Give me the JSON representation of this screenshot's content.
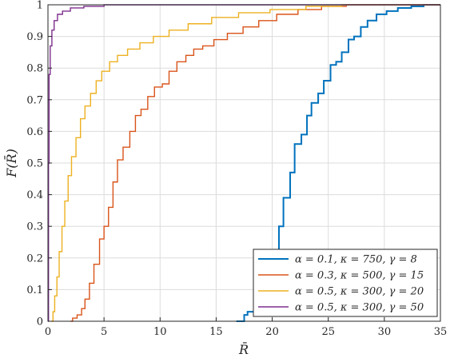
{
  "chart_data": {
    "type": "line",
    "title": "",
    "xlabel": "R̄",
    "ylabel": "F(R̄)",
    "xlim": [
      0,
      35
    ],
    "ylim": [
      0,
      1
    ],
    "xticks": [
      0,
      5,
      10,
      15,
      20,
      25,
      30,
      35
    ],
    "yticks": [
      0,
      0.1,
      0.2,
      0.3,
      0.4,
      0.5,
      0.6,
      0.7,
      0.8,
      0.9,
      1
    ],
    "xtick_labels": [
      "0",
      "5",
      "10",
      "15",
      "20",
      "25",
      "30",
      "35"
    ],
    "ytick_labels": [
      "0",
      "0.1",
      "0.2",
      "0.3",
      "0.4",
      "0.5",
      "0.6",
      "0.7",
      "0.8",
      "0.9",
      "1"
    ],
    "grid": true,
    "legend_position": "bottom-right",
    "series": [
      {
        "name": "α = 0.1, κ = 750, γ = 8",
        "color": "#0072BD",
        "width": 2.0,
        "points": [
          [
            16.8,
            0
          ],
          [
            17.3,
            0
          ],
          [
            17.5,
            0.02
          ],
          [
            17.8,
            0.03
          ],
          [
            18.4,
            0.04
          ],
          [
            18.9,
            0.06
          ],
          [
            19.5,
            0.1
          ],
          [
            20.1,
            0.2
          ],
          [
            20.6,
            0.3
          ],
          [
            21.0,
            0.39
          ],
          [
            21.6,
            0.47
          ],
          [
            22.0,
            0.56
          ],
          [
            22.6,
            0.59
          ],
          [
            23.1,
            0.65
          ],
          [
            23.5,
            0.69
          ],
          [
            24.1,
            0.72
          ],
          [
            24.6,
            0.76
          ],
          [
            25.2,
            0.81
          ],
          [
            25.7,
            0.82
          ],
          [
            26.2,
            0.85
          ],
          [
            26.8,
            0.89
          ],
          [
            27.3,
            0.9
          ],
          [
            27.9,
            0.93
          ],
          [
            28.5,
            0.95
          ],
          [
            29.3,
            0.97
          ],
          [
            30.2,
            0.98
          ],
          [
            31.2,
            0.99
          ],
          [
            32.4,
            0.995
          ],
          [
            33.5,
            1.0
          ],
          [
            35,
            1.0
          ]
        ]
      },
      {
        "name": "α = 0.3, κ = 500, γ = 15",
        "color": "#D95319",
        "width": 1.4,
        "points": [
          [
            2.0,
            0
          ],
          [
            2.2,
            0.01
          ],
          [
            2.6,
            0.02
          ],
          [
            3.0,
            0.04
          ],
          [
            3.3,
            0.07
          ],
          [
            3.7,
            0.12
          ],
          [
            4.1,
            0.18
          ],
          [
            4.6,
            0.26
          ],
          [
            5.0,
            0.3
          ],
          [
            5.4,
            0.36
          ],
          [
            5.8,
            0.44
          ],
          [
            6.2,
            0.51
          ],
          [
            6.7,
            0.55
          ],
          [
            7.3,
            0.6
          ],
          [
            7.8,
            0.65
          ],
          [
            8.3,
            0.67
          ],
          [
            8.9,
            0.71
          ],
          [
            9.5,
            0.74
          ],
          [
            10.2,
            0.75
          ],
          [
            10.8,
            0.79
          ],
          [
            11.5,
            0.82
          ],
          [
            12.3,
            0.84
          ],
          [
            13.0,
            0.86
          ],
          [
            13.8,
            0.87
          ],
          [
            14.8,
            0.89
          ],
          [
            16.0,
            0.91
          ],
          [
            17.4,
            0.93
          ],
          [
            18.8,
            0.95
          ],
          [
            20.4,
            0.97
          ],
          [
            22.3,
            0.985
          ],
          [
            24.4,
            0.995
          ],
          [
            26.6,
            1.0
          ],
          [
            35,
            1.0
          ]
        ]
      },
      {
        "name": "α = 0.5, κ = 300, γ = 20",
        "color": "#EDB120",
        "width": 1.4,
        "points": [
          [
            0.3,
            0
          ],
          [
            0.45,
            0.03
          ],
          [
            0.6,
            0.08
          ],
          [
            0.8,
            0.14
          ],
          [
            1.0,
            0.22
          ],
          [
            1.25,
            0.3
          ],
          [
            1.5,
            0.38
          ],
          [
            1.8,
            0.46
          ],
          [
            2.1,
            0.52
          ],
          [
            2.5,
            0.58
          ],
          [
            2.9,
            0.64
          ],
          [
            3.3,
            0.68
          ],
          [
            3.8,
            0.72
          ],
          [
            4.3,
            0.76
          ],
          [
            4.8,
            0.79
          ],
          [
            5.5,
            0.82
          ],
          [
            6.2,
            0.84
          ],
          [
            7.1,
            0.86
          ],
          [
            8.2,
            0.88
          ],
          [
            9.4,
            0.9
          ],
          [
            10.8,
            0.92
          ],
          [
            12.5,
            0.94
          ],
          [
            14.6,
            0.96
          ],
          [
            17.0,
            0.975
          ],
          [
            19.8,
            0.985
          ],
          [
            23.0,
            0.995
          ],
          [
            26.2,
            1.0
          ],
          [
            35,
            1.0
          ]
        ]
      },
      {
        "name": "α = 0.5, κ = 300, γ = 50",
        "color": "#7E2F8E",
        "width": 1.4,
        "points": [
          [
            0,
            0
          ],
          [
            0.05,
            0.5
          ],
          [
            0.1,
            0.78
          ],
          [
            0.2,
            0.87
          ],
          [
            0.35,
            0.92
          ],
          [
            0.55,
            0.95
          ],
          [
            0.85,
            0.97
          ],
          [
            1.3,
            0.98
          ],
          [
            2.0,
            0.99
          ],
          [
            3.2,
            0.995
          ],
          [
            5.0,
            1.0
          ],
          [
            35,
            1.0
          ]
        ]
      }
    ]
  }
}
